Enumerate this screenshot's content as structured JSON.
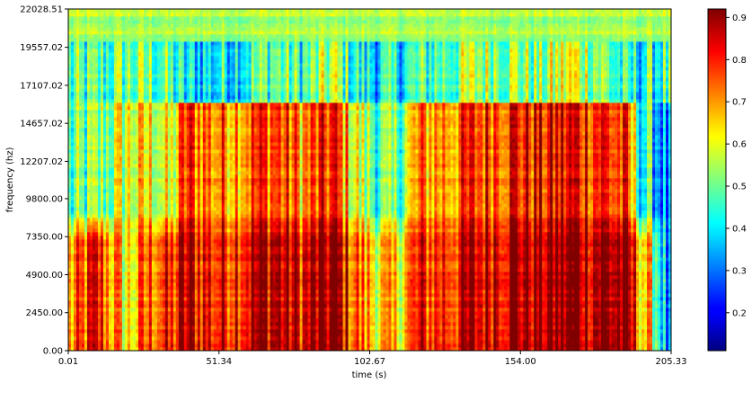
{
  "chart_data": {
    "type": "heatmap",
    "title": "",
    "xlabel": "time (s)",
    "ylabel": "frequency (hz)",
    "xlim": [
      0.01,
      205.33
    ],
    "ylim": [
      0.0,
      22028.51
    ],
    "x_ticks": [
      "0.01",
      "51.34",
      "102.67",
      "154.00",
      "205.33"
    ],
    "y_ticks": [
      "0.00",
      "2450.00",
      "4900.00",
      "7350.00",
      "9800.00",
      "12207.02",
      "14657.02",
      "17107.02",
      "19557.02",
      "22028.51"
    ],
    "colorbar": {
      "colormap": "jet",
      "range": [
        0.11,
        0.92
      ],
      "ticks": [
        "0.2",
        "0.3",
        "0.4",
        "0.5",
        "0.6",
        "0.7",
        "0.8",
        "0.9"
      ]
    },
    "grid": false,
    "legend": "none",
    "approx_profile": {
      "note_times_s": [
        0,
        10,
        20,
        30,
        35,
        40,
        50,
        60,
        70,
        80,
        90,
        100,
        110,
        120,
        130,
        140,
        150,
        160,
        170,
        180,
        190,
        195,
        200,
        205.33
      ],
      "low_freq_0_7000hz": [
        0.65,
        0.8,
        0.6,
        0.78,
        0.75,
        0.85,
        0.8,
        0.85,
        0.88,
        0.82,
        0.9,
        0.7,
        0.6,
        0.78,
        0.8,
        0.85,
        0.9,
        0.88,
        0.9,
        0.9,
        0.88,
        0.7,
        0.55,
        0.2
      ],
      "mid_freq_7000_16000hz": [
        0.45,
        0.5,
        0.6,
        0.62,
        0.55,
        0.78,
        0.72,
        0.75,
        0.78,
        0.7,
        0.8,
        0.55,
        0.45,
        0.7,
        0.72,
        0.78,
        0.82,
        0.8,
        0.82,
        0.82,
        0.75,
        0.45,
        0.4,
        0.25
      ],
      "high_freq_16000_20000hz": [
        0.45,
        0.45,
        0.5,
        0.5,
        0.45,
        0.38,
        0.4,
        0.45,
        0.5,
        0.45,
        0.55,
        0.4,
        0.4,
        0.45,
        0.5,
        0.55,
        0.55,
        0.5,
        0.6,
        0.55,
        0.4,
        0.42,
        0.45,
        0.45
      ],
      "top_band_20000_22028hz": 0.55
    }
  }
}
